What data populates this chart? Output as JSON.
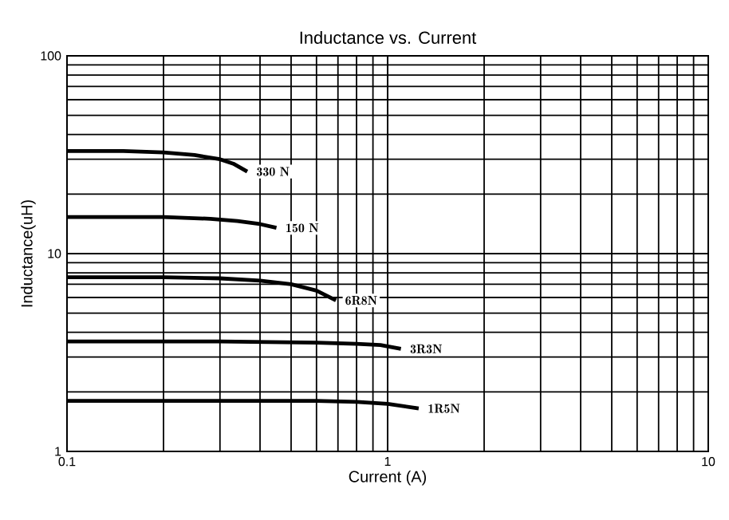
{
  "chart_data": {
    "type": "line",
    "title": "Inductance  vs. Current",
    "xlabel": "Current (A)",
    "ylabel": "Inductance(uH)",
    "log": "xy",
    "grid": true,
    "marker": "none",
    "line_style": "solid",
    "xlim": [
      0.1,
      10
    ],
    "ylim": [
      1,
      100
    ],
    "xticks": [
      0.1,
      1,
      10
    ],
    "yticks": [
      1,
      10,
      100
    ],
    "series": [
      {
        "name": "330 N",
        "color": "#000000",
        "x": [
          0.1,
          0.15,
          0.2,
          0.25,
          0.3,
          0.33,
          0.365
        ],
        "values": [
          33,
          33,
          32.5,
          31.5,
          30,
          28.5,
          26
        ]
      },
      {
        "name": "150 N",
        "color": "#000000",
        "x": [
          0.1,
          0.2,
          0.28,
          0.34,
          0.4,
          0.45
        ],
        "values": [
          15.3,
          15.3,
          15,
          14.6,
          14.1,
          13.5
        ]
      },
      {
        "name": "6R8N",
        "color": "#000000",
        "x": [
          0.1,
          0.2,
          0.3,
          0.4,
          0.5,
          0.6,
          0.69
        ],
        "values": [
          7.6,
          7.6,
          7.5,
          7.3,
          7,
          6.5,
          5.8
        ]
      },
      {
        "name": "3R3N",
        "color": "#000000",
        "x": [
          0.1,
          0.3,
          0.6,
          0.8,
          0.95,
          1.1
        ],
        "values": [
          3.6,
          3.6,
          3.55,
          3.5,
          3.45,
          3.3
        ]
      },
      {
        "name": "1R5N",
        "color": "#000000",
        "x": [
          0.1,
          0.3,
          0.6,
          0.8,
          1,
          1.25
        ],
        "values": [
          1.8,
          1.8,
          1.8,
          1.78,
          1.74,
          1.65
        ]
      }
    ]
  }
}
